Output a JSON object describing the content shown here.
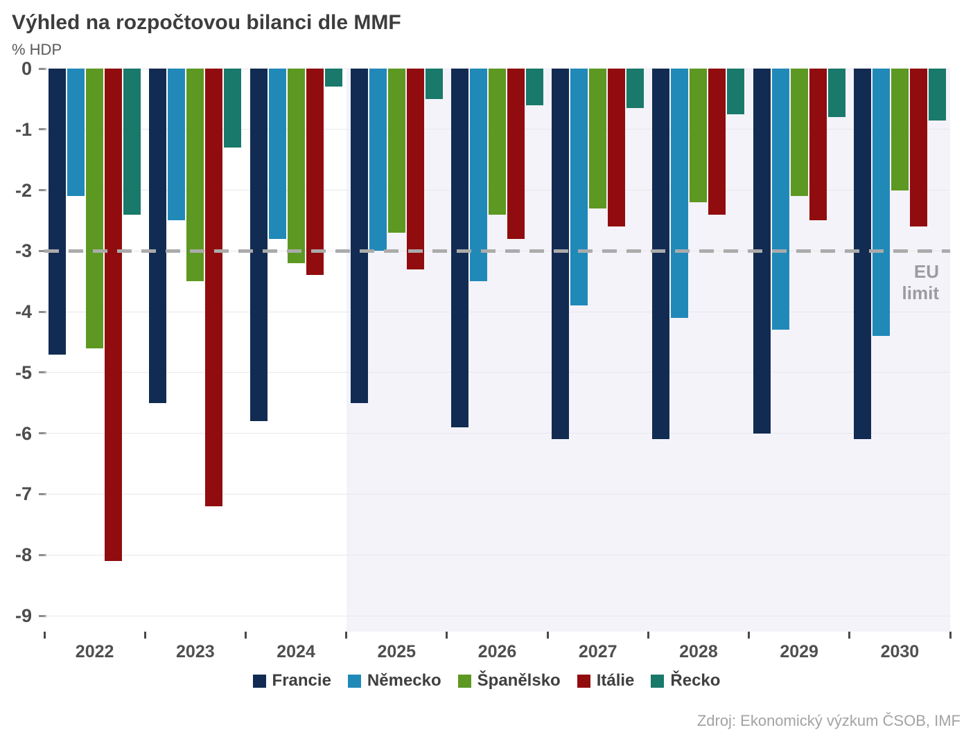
{
  "title": "Výhled na rozpočtovou bilanci dle MMF",
  "subtitle": "% HDP",
  "source": "Zdroj: Ekonomický výzkum ČSOB, IMF",
  "chart_data": {
    "type": "bar",
    "title": "Výhled na rozpočtovou bilanci dle MMF",
    "ylabel": "% HDP",
    "categories": [
      "2022",
      "2023",
      "2024",
      "2025",
      "2026",
      "2027",
      "2028",
      "2029",
      "2030"
    ],
    "series": [
      {
        "name": "Francie",
        "color": "#122b52",
        "values": [
          -4.7,
          -5.5,
          -5.8,
          -5.5,
          -5.9,
          -6.1,
          -6.1,
          -6.0,
          -6.1
        ]
      },
      {
        "name": "Německo",
        "color": "#2089b8",
        "values": [
          -2.1,
          -2.5,
          -2.8,
          -3.0,
          -3.5,
          -3.9,
          -4.1,
          -4.3,
          -4.4
        ]
      },
      {
        "name": "Španělsko",
        "color": "#5d9822",
        "values": [
          -4.6,
          -3.5,
          -3.2,
          -2.7,
          -2.4,
          -2.3,
          -2.2,
          -2.1,
          -2.0
        ]
      },
      {
        "name": "Itálie",
        "color": "#910c0e",
        "values": [
          -8.1,
          -7.2,
          -3.4,
          -3.3,
          -2.8,
          -2.6,
          -2.4,
          -2.5,
          -2.6
        ]
      },
      {
        "name": "Řecko",
        "color": "#19796a",
        "values": [
          -2.4,
          -1.3,
          -0.3,
          -0.5,
          -0.6,
          -0.65,
          -0.75,
          -0.8,
          -0.85
        ]
      }
    ],
    "ylim": [
      -9,
      0
    ],
    "yticks": [
      0,
      -1,
      -2,
      -3,
      -4,
      -5,
      -6,
      -7,
      -8,
      -9
    ],
    "grid": "horizontal",
    "legend_position": "bottom",
    "reference_line": {
      "value": -3,
      "label_line1": "EU",
      "label_line2": "limit",
      "color": "#ababab"
    },
    "forecast_shading": {
      "from_category": "2025",
      "to_category": "2030",
      "color": "#f4f3f9"
    }
  }
}
